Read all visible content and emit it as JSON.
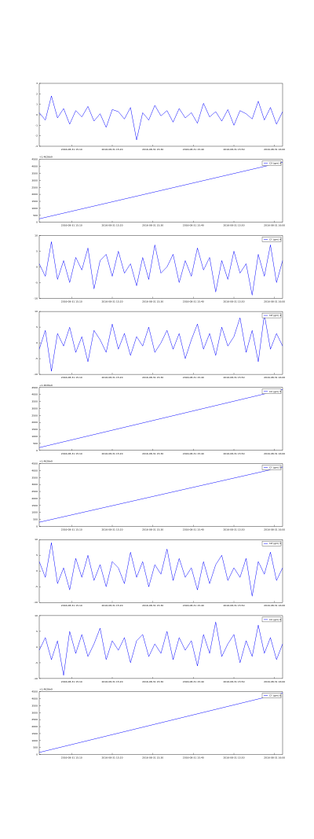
{
  "chart_data": [
    {
      "type": "line",
      "x": [
        0,
        1.5,
        3,
        4.5,
        6,
        7.5,
        9,
        10.5,
        12,
        13.5,
        15,
        16.5,
        18,
        19.5,
        21,
        22.5,
        24,
        25.5,
        27,
        28.5,
        30,
        31.5,
        33,
        34.5,
        36,
        37.5,
        39,
        40.5,
        42,
        43.5,
        45,
        46.5,
        48,
        49.5,
        51,
        52.5,
        54,
        55.5,
        57,
        58.5,
        60
      ],
      "series": [
        {
          "color": "#0000ff",
          "values": [
            0.2,
            -0.5,
            1.8,
            -0.3,
            0.6,
            -0.9,
            0.4,
            -0.2,
            0.8,
            -0.6,
            0.1,
            -1.2,
            0.5,
            0.3,
            -0.4,
            0.7,
            -2.4,
            0.2,
            -0.5,
            0.9,
            -0.1,
            0.4,
            -0.7,
            0.6,
            -0.3,
            0.2,
            -0.8,
            1.1,
            -0.2,
            0.3,
            -0.6,
            0.5,
            -1.0,
            0.4,
            0.1,
            -0.4,
            1.3,
            -0.5,
            0.7,
            -0.9,
            0.3
          ]
        }
      ],
      "xlim": [
        0,
        60
      ],
      "xticks": [
        {
          "value": 8,
          "label": "2016-08-31 15:10"
        },
        {
          "value": 18,
          "label": "2016-08-31 15:20"
        },
        {
          "value": 28,
          "label": "2016-08-31 15:30"
        },
        {
          "value": 38,
          "label": "2016-08-31 15:40"
        },
        {
          "value": 48,
          "label": "2016-08-31 15:50"
        },
        {
          "value": 58,
          "label": "2016-08-31 16:00"
        }
      ],
      "ylim": [
        -3,
        3
      ],
      "yticks": [
        -3,
        -2,
        -1,
        0,
        1,
        2,
        3
      ]
    },
    {
      "type": "line",
      "offset_text": "+1.4626e9",
      "x": [
        0,
        60
      ],
      "series": [
        {
          "name": "CX (gm) 4",
          "color": "#0000ff",
          "values": [
            250,
            4300
          ]
        }
      ],
      "xlim": [
        0,
        60
      ],
      "xticks": [
        {
          "value": 8,
          "label": "2016-08-31 15:10"
        },
        {
          "value": 18,
          "label": "2016-08-31 15:20"
        },
        {
          "value": 28,
          "label": "2016-08-31 15:30"
        },
        {
          "value": 38,
          "label": "2016-08-31 15:40"
        },
        {
          "value": 48,
          "label": "2016-08-31 15:50"
        },
        {
          "value": 58,
          "label": "2016-08-31 16:00"
        }
      ],
      "ylim": [
        0,
        4500
      ],
      "yticks": [
        0,
        500,
        1000,
        1500,
        2000,
        2500,
        3000,
        3500,
        4000,
        4500
      ]
    },
    {
      "type": "line",
      "x": [
        0,
        1.5,
        3,
        4.5,
        6,
        7.5,
        9,
        10.5,
        12,
        13.5,
        15,
        16.5,
        18,
        19.5,
        21,
        22.5,
        24,
        25.5,
        27,
        28.5,
        30,
        31.5,
        33,
        34.5,
        36,
        37.5,
        39,
        40.5,
        42,
        43.5,
        45,
        46.5,
        48,
        49.5,
        51,
        52.5,
        54,
        55.5,
        57,
        58.5,
        60
      ],
      "series": [
        {
          "name": "CY (gm) 4",
          "color": "#0000ff",
          "values": [
            1,
            -3,
            8,
            -4,
            2,
            -5,
            3,
            -1,
            6,
            -7,
            2,
            4,
            -3,
            5,
            -2,
            1,
            -6,
            3,
            -4,
            7,
            -2,
            0,
            4,
            -5,
            2,
            -3,
            6,
            -1,
            3,
            -8,
            2,
            -4,
            5,
            -2,
            1,
            -9,
            4,
            -3,
            7,
            -5,
            2
          ]
        }
      ],
      "xlim": [
        0,
        60
      ],
      "xticks": [
        {
          "value": 8,
          "label": "2016-08-31 15:10"
        },
        {
          "value": 18,
          "label": "2016-08-31 15:20"
        },
        {
          "value": 28,
          "label": "2016-08-31 15:30"
        },
        {
          "value": 38,
          "label": "2016-08-31 15:40"
        },
        {
          "value": 48,
          "label": "2016-08-31 15:50"
        },
        {
          "value": 58,
          "label": "2016-08-31 16:00"
        }
      ],
      "ylim": [
        -10,
        10
      ],
      "yticks": [
        -10,
        -5,
        0,
        5,
        10
      ]
    },
    {
      "type": "line",
      "x": [
        0,
        1.5,
        3,
        4.5,
        6,
        7.5,
        9,
        10.5,
        12,
        13.5,
        15,
        16.5,
        18,
        19.5,
        21,
        22.5,
        24,
        25.5,
        27,
        28.5,
        30,
        31.5,
        33,
        34.5,
        36,
        37.5,
        39,
        40.5,
        42,
        43.5,
        45,
        46.5,
        48,
        49.5,
        51,
        52.5,
        54,
        55.5,
        57,
        58.5,
        60
      ],
      "series": [
        {
          "name": "CZ (gm) 4",
          "color": "#0000ff",
          "values": [
            -2,
            4,
            -9,
            3,
            -1,
            5,
            -3,
            2,
            -6,
            4,
            1,
            -3,
            6,
            -2,
            3,
            -4,
            2,
            -1,
            5,
            -3,
            0,
            4,
            -2,
            3,
            -5,
            1,
            6,
            -2,
            3,
            -4,
            5,
            -1,
            2,
            8,
            -3,
            4,
            -6,
            9,
            -2,
            3,
            -1
          ]
        }
      ],
      "xlim": [
        0,
        60
      ],
      "xticks": [
        {
          "value": 8,
          "label": "2016-08-31 15:10"
        },
        {
          "value": 18,
          "label": "2016-08-31 15:20"
        },
        {
          "value": 28,
          "label": "2016-08-31 15:30"
        },
        {
          "value": 38,
          "label": "2016-08-31 15:40"
        },
        {
          "value": 48,
          "label": "2016-08-31 15:50"
        },
        {
          "value": 58,
          "label": "2016-08-31 16:00"
        }
      ],
      "ylim": [
        -10,
        10
      ],
      "yticks": [
        -10,
        -5,
        0,
        5,
        10
      ]
    },
    {
      "type": "line",
      "offset_text": "+1.4626e9",
      "x": [
        0,
        60
      ],
      "series": [
        {
          "name": "CX (gm) 5",
          "color": "#0000ff",
          "values": [
            200,
            4350
          ]
        }
      ],
      "xlim": [
        0,
        60
      ],
      "xticks": [
        {
          "value": 8,
          "label": "2016-08-31 15:10"
        },
        {
          "value": 18,
          "label": "2016-08-31 15:20"
        },
        {
          "value": 28,
          "label": "2016-08-31 15:30"
        },
        {
          "value": 38,
          "label": "2016-08-31 15:40"
        },
        {
          "value": 48,
          "label": "2016-08-31 15:50"
        },
        {
          "value": 58,
          "label": "2016-08-31 16:00"
        }
      ],
      "ylim": [
        0,
        4500
      ],
      "yticks": [
        0,
        500,
        1000,
        1500,
        2000,
        2500,
        3000,
        3500,
        4000,
        4500
      ]
    },
    {
      "type": "line",
      "offset_text": "+1.4626e9",
      "x": [
        0,
        60
      ],
      "series": [
        {
          "name": "CY (gm) 5",
          "color": "#0000ff",
          "values": [
            300,
            4250
          ]
        }
      ],
      "xlim": [
        0,
        60
      ],
      "xticks": [
        {
          "value": 8,
          "label": "2016-08-31 15:10"
        },
        {
          "value": 18,
          "label": "2016-08-31 15:20"
        },
        {
          "value": 28,
          "label": "2016-08-31 15:30"
        },
        {
          "value": 38,
          "label": "2016-08-31 15:40"
        },
        {
          "value": 48,
          "label": "2016-08-31 15:50"
        },
        {
          "value": 58,
          "label": "2016-08-31 16:00"
        }
      ],
      "ylim": [
        0,
        4500
      ],
      "yticks": [
        0,
        500,
        1000,
        1500,
        2000,
        2500,
        3000,
        3500,
        4000,
        4500
      ]
    },
    {
      "type": "line",
      "x": [
        0,
        1.5,
        3,
        4.5,
        6,
        7.5,
        9,
        10.5,
        12,
        13.5,
        15,
        16.5,
        18,
        19.5,
        21,
        22.5,
        24,
        25.5,
        27,
        28.5,
        30,
        31.5,
        33,
        34.5,
        36,
        37.5,
        39,
        40.5,
        42,
        43.5,
        45,
        46.5,
        48,
        49.5,
        51,
        52.5,
        54,
        55.5,
        57,
        58.5,
        60
      ],
      "series": [
        {
          "name": "CZ (gm) 5",
          "color": "#0000ff",
          "values": [
            3,
            -2,
            9,
            -4,
            1,
            -6,
            4,
            -2,
            5,
            -3,
            2,
            -5,
            3,
            1,
            -4,
            6,
            -2,
            3,
            -5,
            2,
            -1,
            7,
            -3,
            4,
            -2,
            1,
            -6,
            3,
            -4,
            2,
            5,
            -3,
            1,
            -2,
            4,
            -8,
            3,
            -1,
            6,
            -3,
            1
          ]
        }
      ],
      "xlim": [
        0,
        60
      ],
      "xticks": [
        {
          "value": 8,
          "label": "2016-08-31 15:10"
        },
        {
          "value": 18,
          "label": "2016-08-31 15:20"
        },
        {
          "value": 28,
          "label": "2016-08-31 15:30"
        },
        {
          "value": 38,
          "label": "2016-08-31 15:40"
        },
        {
          "value": 48,
          "label": "2016-08-31 15:50"
        },
        {
          "value": 58,
          "label": "2016-08-31 16:00"
        }
      ],
      "ylim": [
        -10,
        10
      ],
      "yticks": [
        -10,
        -5,
        0,
        5,
        10
      ]
    },
    {
      "type": "line",
      "x": [
        0,
        1.5,
        3,
        4.5,
        6,
        7.5,
        9,
        10.5,
        12,
        13.5,
        15,
        16.5,
        18,
        19.5,
        21,
        22.5,
        24,
        25.5,
        27,
        28.5,
        30,
        31.5,
        33,
        34.5,
        36,
        37.5,
        39,
        40.5,
        42,
        43.5,
        45,
        46.5,
        48,
        49.5,
        51,
        52.5,
        54,
        55.5,
        57,
        58.5,
        60
      ],
      "series": [
        {
          "name": "CX (gm) 6",
          "color": "#0000ff",
          "values": [
            -1,
            3,
            -4,
            2,
            -9,
            5,
            -2,
            4,
            -3,
            1,
            6,
            -4,
            2,
            -1,
            3,
            -5,
            2,
            4,
            -3,
            1,
            -2,
            5,
            -4,
            3,
            -1,
            2,
            -6,
            4,
            -2,
            8,
            -3,
            1,
            4,
            -5,
            2,
            -3,
            7,
            -2,
            3,
            -4,
            1
          ]
        }
      ],
      "xlim": [
        0,
        60
      ],
      "xticks": [
        {
          "value": 8,
          "label": "2016-08-31 15:10"
        },
        {
          "value": 18,
          "label": "2016-08-31 15:20"
        },
        {
          "value": 28,
          "label": "2016-08-31 15:30"
        },
        {
          "value": 38,
          "label": "2016-08-31 15:40"
        },
        {
          "value": 48,
          "label": "2016-08-31 15:50"
        },
        {
          "value": 58,
          "label": "2016-08-31 16:00"
        }
      ],
      "ylim": [
        -10,
        10
      ],
      "yticks": [
        -10,
        -5,
        0,
        5,
        10
      ]
    },
    {
      "type": "line",
      "offset_text": "+1.4626e9",
      "x": [
        0,
        60
      ],
      "series": [
        {
          "name": "CY (gm) 6",
          "color": "#0000ff",
          "values": [
            150,
            4400
          ]
        }
      ],
      "xlim": [
        0,
        60
      ],
      "xticks": [
        {
          "value": 8,
          "label": "2016-08-31 15:10"
        },
        {
          "value": 18,
          "label": "2016-08-31 15:20"
        },
        {
          "value": 28,
          "label": "2016-08-31 15:30"
        },
        {
          "value": 38,
          "label": "2016-08-31 15:40"
        },
        {
          "value": 48,
          "label": "2016-08-31 15:50"
        },
        {
          "value": 58,
          "label": "2016-08-31 16:00"
        }
      ],
      "ylim": [
        0,
        4500
      ],
      "yticks": [
        0,
        500,
        1000,
        1500,
        2000,
        2500,
        3000,
        3500,
        4000,
        4500
      ]
    }
  ]
}
